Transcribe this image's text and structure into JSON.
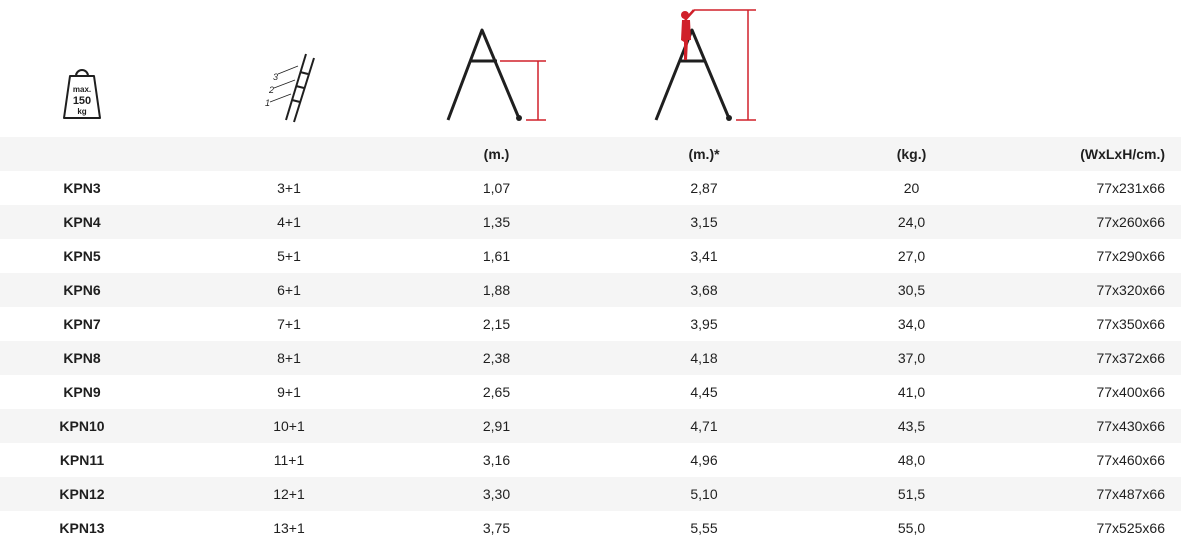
{
  "icons": {
    "weight": {
      "line1": "max.",
      "line2": "150",
      "line3": "kg"
    },
    "steps": {
      "labels": [
        "3",
        "2",
        "1"
      ]
    }
  },
  "header": [
    "",
    "",
    "(m.)",
    "(m.)*",
    "(kg.)",
    "(WxLxH/cm.)"
  ],
  "rows": [
    {
      "model": "KPN3",
      "steps": "3+1",
      "height": "1,07",
      "reach": "2,87",
      "weight": "20",
      "size": "77x231x66"
    },
    {
      "model": "KPN4",
      "steps": "4+1",
      "height": "1,35",
      "reach": "3,15",
      "weight": "24,0",
      "size": "77x260x66"
    },
    {
      "model": "KPN5",
      "steps": "5+1",
      "height": "1,61",
      "reach": "3,41",
      "weight": "27,0",
      "size": "77x290x66"
    },
    {
      "model": "KPN6",
      "steps": "6+1",
      "height": "1,88",
      "reach": "3,68",
      "weight": "30,5",
      "size": "77x320x66"
    },
    {
      "model": "KPN7",
      "steps": "7+1",
      "height": "2,15",
      "reach": "3,95",
      "weight": "34,0",
      "size": "77x350x66"
    },
    {
      "model": "KPN8",
      "steps": "8+1",
      "height": "2,38",
      "reach": "4,18",
      "weight": "37,0",
      "size": "77x372x66"
    },
    {
      "model": "KPN9",
      "steps": "9+1",
      "height": "2,65",
      "reach": "4,45",
      "weight": "41,0",
      "size": "77x400x66"
    },
    {
      "model": "KPN10",
      "steps": "10+1",
      "height": "2,91",
      "reach": "4,71",
      "weight": "43,5",
      "size": "77x430x66"
    },
    {
      "model": "KPN11",
      "steps": "11+1",
      "height": "3,16",
      "reach": "4,96",
      "weight": "48,0",
      "size": "77x460x66"
    },
    {
      "model": "KPN12",
      "steps": "12+1",
      "height": "3,30",
      "reach": "5,10",
      "weight": "51,5",
      "size": "77x487x66"
    },
    {
      "model": "KPN13",
      "steps": "13+1",
      "height": "3,75",
      "reach": "5,55",
      "weight": "55,0",
      "size": "77x525x66"
    }
  ],
  "colors": {
    "accent": "#d0202a",
    "text": "#1f1f1f",
    "stripe": "#f5f5f5"
  }
}
